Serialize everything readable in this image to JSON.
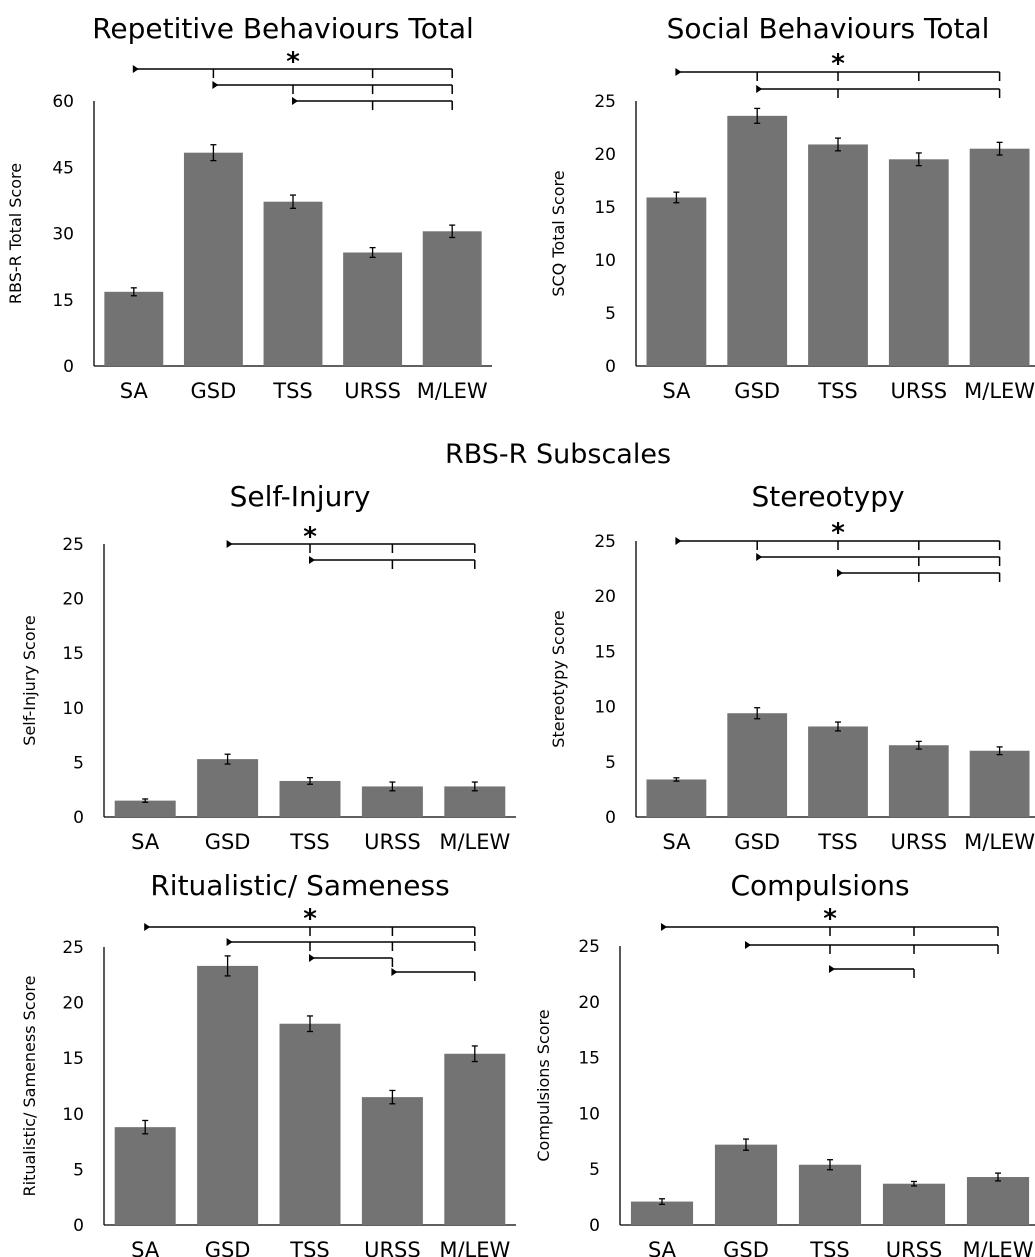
{
  "section_heading": "RBS-R Subscales",
  "bar_color": "#737373",
  "axis_color": "#000000",
  "chart_data": [
    {
      "type": "bar",
      "title": "Repetitive Behaviours Total",
      "ylabel": "RBS-R Total Score",
      "categories": [
        "SA",
        "GSD",
        "TSS",
        "URSS",
        "M/LEW"
      ],
      "values": [
        16.8,
        48.3,
        37.2,
        25.7,
        30.5
      ],
      "errors": [
        0.9,
        1.8,
        1.5,
        1.1,
        1.4
      ],
      "ylim": [
        0,
        60
      ],
      "yticks": [
        "0",
        "15",
        "30",
        "45",
        "60"
      ],
      "significance_marker": "*",
      "comparisons": [
        {
          "from": "SA",
          "ticks": [
            "GSD",
            "URSS",
            "M/LEW"
          ]
        },
        {
          "from": "GSD",
          "ticks": [
            "TSS",
            "URSS",
            "M/LEW"
          ]
        },
        {
          "from": "TSS",
          "ticks": [
            "URSS",
            "M/LEW"
          ]
        }
      ]
    },
    {
      "type": "bar",
      "title": "Social Behaviours Total",
      "ylabel": "SCQ Total Score",
      "categories": [
        "SA",
        "GSD",
        "TSS",
        "URSS",
        "M/LEW"
      ],
      "values": [
        15.9,
        23.6,
        20.9,
        19.5,
        20.5
      ],
      "errors": [
        0.5,
        0.7,
        0.6,
        0.6,
        0.6
      ],
      "ylim": [
        0,
        25
      ],
      "yticks": [
        "0",
        "5",
        "10",
        "15",
        "20",
        "25"
      ],
      "significance_marker": "*",
      "comparisons": [
        {
          "from": "SA",
          "ticks": [
            "GSD",
            "TSS",
            "URSS",
            "M/LEW"
          ]
        },
        {
          "from": "GSD",
          "ticks": [
            "TSS",
            "M/LEW"
          ]
        }
      ]
    },
    {
      "type": "bar",
      "title": "Self-Injury",
      "ylabel": "Self-Injury Score",
      "categories": [
        "SA",
        "GSD",
        "TSS",
        "URSS",
        "M/LEW"
      ],
      "values": [
        1.5,
        5.3,
        3.3,
        2.8,
        2.8
      ],
      "errors": [
        0.15,
        0.45,
        0.3,
        0.4,
        0.4
      ],
      "ylim": [
        0,
        25
      ],
      "yticks": [
        "0",
        "5",
        "10",
        "15",
        "20",
        "25"
      ],
      "significance_marker": "*",
      "comparisons": [
        {
          "from": "GSD",
          "ticks": [
            "TSS",
            "URSS",
            "M/LEW"
          ]
        },
        {
          "from": "TSS",
          "ticks": [
            "URSS",
            "M/LEW"
          ]
        }
      ]
    },
    {
      "type": "bar",
      "title": "Stereotypy",
      "ylabel": "Stereotypy Score",
      "categories": [
        "SA",
        "GSD",
        "TSS",
        "URSS",
        "M/LEW"
      ],
      "values": [
        3.4,
        9.4,
        8.2,
        6.5,
        6.0
      ],
      "errors": [
        0.15,
        0.5,
        0.4,
        0.35,
        0.35
      ],
      "ylim": [
        0,
        25
      ],
      "yticks": [
        "0",
        "5",
        "10",
        "15",
        "20",
        "25"
      ],
      "significance_marker": "*",
      "comparisons": [
        {
          "from": "SA",
          "ticks": [
            "GSD",
            "TSS",
            "URSS",
            "M/LEW"
          ]
        },
        {
          "from": "GSD",
          "ticks": [
            "URSS",
            "M/LEW"
          ]
        },
        {
          "from": "TSS",
          "ticks": [
            "URSS",
            "M/LEW"
          ]
        }
      ]
    },
    {
      "type": "bar",
      "title": "Ritualistic/ Sameness",
      "ylabel": "Ritualistic/ Sameness Score",
      "categories": [
        "SA",
        "GSD",
        "TSS",
        "URSS",
        "M/LEW"
      ],
      "values": [
        8.8,
        23.3,
        18.1,
        11.5,
        15.4
      ],
      "errors": [
        0.6,
        0.9,
        0.7,
        0.6,
        0.7
      ],
      "ylim": [
        0,
        25
      ],
      "yticks": [
        "0",
        "5",
        "10",
        "15",
        "20",
        "25"
      ],
      "significance_marker": "*",
      "comparisons": [
        {
          "from": "SA",
          "ticks": [
            "TSS",
            "URSS",
            "M/LEW"
          ]
        },
        {
          "from": "GSD",
          "ticks": [
            "TSS",
            "URSS",
            "M/LEW"
          ]
        },
        {
          "from": "TSS",
          "ticks": [
            "URSS"
          ]
        },
        {
          "from": "URSS",
          "ticks": [
            "M/LEW"
          ]
        }
      ]
    },
    {
      "type": "bar",
      "title": "Compulsions",
      "ylabel": "Compulsions Score",
      "categories": [
        "SA",
        "GSD",
        "TSS",
        "URSS",
        "M/LEW"
      ],
      "values": [
        2.1,
        7.2,
        5.4,
        3.7,
        4.3
      ],
      "errors": [
        0.25,
        0.5,
        0.45,
        0.2,
        0.35
      ],
      "ylim": [
        0,
        25
      ],
      "yticks": [
        "0",
        "5",
        "10",
        "15",
        "20",
        "25"
      ],
      "significance_marker": "*",
      "comparisons": [
        {
          "from": "SA",
          "ticks": [
            "TSS",
            "URSS",
            "M/LEW"
          ]
        },
        {
          "from": "GSD",
          "ticks": [
            "TSS",
            "URSS",
            "M/LEW"
          ]
        },
        {
          "from": "TSS",
          "ticks": [
            "URSS"
          ]
        }
      ]
    }
  ]
}
